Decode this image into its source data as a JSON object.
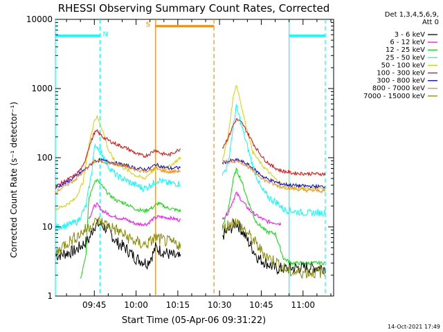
{
  "chart_data": {
    "type": "line",
    "title": "RHESSI Observing Summary Count Rates, Corrected",
    "xlabel": "Start Time (05-Apr-06 09:31:22)",
    "ylabel": "Corrected Count Rate (s⁻¹ detector⁻¹)",
    "footer": "14-Oct-2021 17:49",
    "legend_header": [
      "Det 1,3,4,5,6,9,",
      "Att 0"
    ],
    "xlim": [
      "09:31",
      "11:11"
    ],
    "ylim": [
      1,
      10000
    ],
    "yscale": "log",
    "ytick_labels": [
      "1",
      "10",
      "100",
      "1000",
      "10000"
    ],
    "xtick_labels": [
      "09:45",
      "10:00",
      "10:15",
      "10:30",
      "10:45",
      "11:00"
    ],
    "xtick_values": [
      "09:45",
      "10:00",
      "10:15",
      "10:30",
      "10:45",
      "11:00"
    ],
    "legend": {
      "position": "right"
    },
    "data_gaps": [
      [
        "10:17",
        "10:31"
      ]
    ],
    "series": [
      {
        "name": "3 - 6 keV",
        "color": "#000000",
        "points": [
          [
            "09:31",
            3.8
          ],
          [
            "09:38",
            4.5
          ],
          [
            "09:43",
            6.5
          ],
          [
            "09:45",
            10.5
          ],
          [
            "09:47",
            11
          ],
          [
            "09:50",
            9
          ],
          [
            "09:53",
            6
          ],
          [
            "09:56",
            5
          ],
          [
            "10:00",
            3.5
          ],
          [
            "10:04",
            3
          ],
          [
            "10:06",
            4
          ],
          [
            "10:07",
            5
          ],
          [
            "10:09",
            4.5
          ],
          [
            "10:12",
            4
          ],
          [
            "10:16",
            3.5
          ],
          [
            "10:31",
            7.5
          ],
          [
            "10:34",
            9.5
          ],
          [
            "10:36",
            11.5
          ],
          [
            "10:38",
            9
          ],
          [
            "10:41",
            5.5
          ],
          [
            "10:44",
            3.5
          ],
          [
            "10:47",
            3
          ],
          [
            "10:50",
            2.5
          ],
          [
            "10:53",
            2.5
          ],
          [
            "11:00",
            2.6
          ],
          [
            "11:08",
            2.6
          ]
        ]
      },
      {
        "name": "6 - 12 keV",
        "color": "#ff00ff",
        "points": [
          [
            "09:43",
            13
          ],
          [
            "09:45",
            20
          ],
          [
            "09:46",
            21
          ],
          [
            "09:48",
            17
          ],
          [
            "09:52",
            14
          ],
          [
            "09:56",
            13
          ],
          [
            "10:00",
            11
          ],
          [
            "10:04",
            11
          ],
          [
            "10:06",
            13
          ],
          [
            "10:08",
            14
          ],
          [
            "10:12",
            13.5
          ],
          [
            "10:16",
            12.5
          ],
          [
            "10:31",
            13
          ],
          [
            "10:33",
            16
          ],
          [
            "10:35",
            25
          ],
          [
            "10:36",
            31
          ],
          [
            "10:38",
            24
          ],
          [
            "10:41",
            17
          ],
          [
            "10:44",
            14
          ],
          [
            "10:47",
            12
          ],
          [
            "10:50",
            11.5
          ],
          [
            "10:52",
            11
          ]
        ]
      },
      {
        "name": "12 - 25 keV",
        "color": "#00dd00",
        "points": [
          [
            "09:40",
            1.8
          ],
          [
            "09:42",
            4
          ],
          [
            "09:43",
            25
          ],
          [
            "09:45",
            45
          ],
          [
            "09:46",
            47
          ],
          [
            "09:48",
            38
          ],
          [
            "09:50",
            30
          ],
          [
            "09:53",
            24
          ],
          [
            "09:56",
            22
          ],
          [
            "10:00",
            18
          ],
          [
            "10:03",
            17
          ],
          [
            "10:06",
            19
          ],
          [
            "10:08",
            22
          ],
          [
            "10:11",
            19
          ],
          [
            "10:16",
            17
          ],
          [
            "10:31",
            10
          ],
          [
            "10:33",
            17
          ],
          [
            "10:35",
            50
          ],
          [
            "10:36",
            68
          ],
          [
            "10:38",
            45
          ],
          [
            "10:40",
            25
          ],
          [
            "10:43",
            12
          ],
          [
            "10:47",
            8.5
          ],
          [
            "10:50",
            8
          ],
          [
            "10:53",
            3.5
          ],
          [
            "10:56",
            3
          ],
          [
            "11:00",
            3
          ],
          [
            "11:08",
            3
          ]
        ]
      },
      {
        "name": "25 - 50 keV",
        "color": "#00ffff",
        "points": [
          [
            "09:31",
            10
          ],
          [
            "09:35",
            10.5
          ],
          [
            "09:39",
            12
          ],
          [
            "09:42",
            20
          ],
          [
            "09:44",
            60
          ],
          [
            "09:45",
            140
          ],
          [
            "09:46",
            150
          ],
          [
            "09:48",
            110
          ],
          [
            "09:50",
            75
          ],
          [
            "09:53",
            55
          ],
          [
            "09:56",
            48
          ],
          [
            "10:00",
            40
          ],
          [
            "10:03",
            36
          ],
          [
            "10:06",
            42
          ],
          [
            "10:08",
            48
          ],
          [
            "10:11",
            43
          ],
          [
            "10:16",
            42
          ],
          [
            "10:31",
            55
          ],
          [
            "10:33",
            80
          ],
          [
            "10:35",
            300
          ],
          [
            "10:36",
            550
          ],
          [
            "10:37",
            400
          ],
          [
            "10:39",
            200
          ],
          [
            "10:42",
            75
          ],
          [
            "10:45",
            35
          ],
          [
            "10:48",
            26
          ],
          [
            "10:51",
            22
          ],
          [
            "10:53",
            18
          ],
          [
            "10:56",
            17
          ],
          [
            "11:00",
            16
          ],
          [
            "11:08",
            16
          ]
        ]
      },
      {
        "name": "50 - 100 keV",
        "color": "#ddcc00",
        "points": [
          [
            "09:31",
            18
          ],
          [
            "09:34",
            20
          ],
          [
            "09:38",
            25
          ],
          [
            "09:41",
            45
          ],
          [
            "09:43",
            150
          ],
          [
            "09:45",
            350
          ],
          [
            "09:46",
            390
          ],
          [
            "09:48",
            250
          ],
          [
            "09:50",
            130
          ],
          [
            "09:53",
            80
          ],
          [
            "09:56",
            70
          ],
          [
            "10:00",
            55
          ],
          [
            "10:03",
            50
          ],
          [
            "10:05",
            60
          ],
          [
            "10:08",
            75
          ],
          [
            "10:11",
            70
          ],
          [
            "10:16",
            100
          ],
          [
            "10:31",
            90
          ],
          [
            "10:33",
            200
          ],
          [
            "10:35",
            800
          ],
          [
            "10:36",
            1150
          ],
          [
            "10:37",
            800
          ],
          [
            "10:39",
            350
          ],
          [
            "10:42",
            120
          ],
          [
            "10:45",
            80
          ],
          [
            "10:48",
            60
          ],
          [
            "10:51",
            45
          ],
          [
            "10:54",
            38
          ],
          [
            "11:00",
            37
          ],
          [
            "11:08",
            36
          ]
        ]
      },
      {
        "name": "100 - 300 keV",
        "color": "#ee0000",
        "points": [
          [
            "09:31",
            38
          ],
          [
            "09:34",
            45
          ],
          [
            "09:38",
            55
          ],
          [
            "09:41",
            75
          ],
          [
            "09:43",
            140
          ],
          [
            "09:45",
            230
          ],
          [
            "09:46",
            240
          ],
          [
            "09:48",
            200
          ],
          [
            "09:51",
            170
          ],
          [
            "09:54",
            150
          ],
          [
            "09:57",
            135
          ],
          [
            "10:00",
            115
          ],
          [
            "10:03",
            105
          ],
          [
            "10:05",
            115
          ],
          [
            "10:07",
            130
          ],
          [
            "10:09",
            115
          ],
          [
            "10:12",
            110
          ],
          [
            "10:16",
            135
          ],
          [
            "10:31",
            140
          ],
          [
            "10:33",
            190
          ],
          [
            "10:35",
            300
          ],
          [
            "10:36",
            360
          ],
          [
            "10:38",
            320
          ],
          [
            "10:40",
            230
          ],
          [
            "10:43",
            140
          ],
          [
            "10:46",
            95
          ],
          [
            "10:49",
            75
          ],
          [
            "10:52",
            65
          ],
          [
            "10:56",
            60
          ],
          [
            "11:00",
            59
          ],
          [
            "11:08",
            58
          ]
        ]
      },
      {
        "name": "300 - 800 keV",
        "color": "#0000ee",
        "points": [
          [
            "09:31",
            36
          ],
          [
            "09:34",
            42
          ],
          [
            "09:38",
            52
          ],
          [
            "09:41",
            65
          ],
          [
            "09:43",
            75
          ],
          [
            "09:45",
            90
          ],
          [
            "09:47",
            92
          ],
          [
            "09:50",
            88
          ],
          [
            "09:53",
            83
          ],
          [
            "09:56",
            78
          ],
          [
            "10:00",
            70
          ],
          [
            "10:03",
            68
          ],
          [
            "10:05",
            70
          ],
          [
            "10:07",
            80
          ],
          [
            "10:09",
            75
          ],
          [
            "10:12",
            70
          ],
          [
            "10:16",
            72
          ],
          [
            "10:31",
            85
          ],
          [
            "10:34",
            90
          ],
          [
            "10:37",
            92
          ],
          [
            "10:40",
            80
          ],
          [
            "10:43",
            65
          ],
          [
            "10:46",
            52
          ],
          [
            "10:49",
            46
          ],
          [
            "10:52",
            42
          ],
          [
            "10:56",
            40
          ],
          [
            "11:00",
            39
          ],
          [
            "11:08",
            38
          ]
        ]
      },
      {
        "name": "800 - 7000 keV",
        "color": "#ff8800",
        "points": [
          [
            "09:31",
            32
          ],
          [
            "09:34",
            38
          ],
          [
            "09:38",
            48
          ],
          [
            "09:41",
            62
          ],
          [
            "09:43",
            75
          ],
          [
            "09:45",
            88
          ],
          [
            "09:47",
            90
          ],
          [
            "09:50",
            85
          ],
          [
            "09:53",
            80
          ],
          [
            "09:56",
            75
          ],
          [
            "10:00",
            67
          ],
          [
            "10:03",
            64
          ],
          [
            "10:05",
            65
          ],
          [
            "10:07",
            70
          ],
          [
            "10:09",
            66
          ],
          [
            "10:12",
            62
          ],
          [
            "10:16",
            65
          ],
          [
            "10:31",
            85
          ],
          [
            "10:34",
            88
          ],
          [
            "10:37",
            90
          ],
          [
            "10:40",
            75
          ],
          [
            "10:43",
            60
          ],
          [
            "10:46",
            48
          ],
          [
            "10:49",
            42
          ],
          [
            "10:52",
            38
          ],
          [
            "10:56",
            36
          ],
          [
            "11:00",
            34
          ],
          [
            "11:08",
            33
          ]
        ]
      },
      {
        "name": "7000 - 15000 keV",
        "color": "#888800",
        "points": [
          [
            "09:31",
            4
          ],
          [
            "09:34",
            5.5
          ],
          [
            "09:38",
            7
          ],
          [
            "09:41",
            8.5
          ],
          [
            "09:43",
            10
          ],
          [
            "09:45",
            11.5
          ],
          [
            "09:47",
            12
          ],
          [
            "09:50",
            10.5
          ],
          [
            "09:53",
            9
          ],
          [
            "09:56",
            7.5
          ],
          [
            "10:00",
            6
          ],
          [
            "10:03",
            5.5
          ],
          [
            "10:05",
            6
          ],
          [
            "10:07",
            7
          ],
          [
            "10:09",
            6.5
          ],
          [
            "10:12",
            6
          ],
          [
            "10:16",
            5.5
          ],
          [
            "10:31",
            9
          ],
          [
            "10:34",
            11.5
          ],
          [
            "10:36",
            12
          ],
          [
            "10:39",
            9
          ],
          [
            "10:42",
            6.5
          ],
          [
            "10:45",
            4.5
          ],
          [
            "10:48",
            3.5
          ],
          [
            "10:51",
            3
          ],
          [
            "10:53",
            2.5
          ],
          [
            "10:56",
            2.2
          ],
          [
            "11:00",
            2.2
          ],
          [
            "11:08",
            2.2
          ]
        ]
      }
    ],
    "annotations": {
      "flags": [
        {
          "label": "N",
          "color": "#00ffff",
          "segments": [
            [
              "09:31",
              "09:47"
            ],
            [
              "10:55",
              "11:08"
            ]
          ],
          "level": 5800
        },
        {
          "label": "S",
          "color": "#ff8800",
          "segments": [
            [
              "10:07",
              "10:28"
            ]
          ],
          "level": 8000
        }
      ],
      "vlines": [
        {
          "time": "09:31",
          "color": "#00ffff",
          "style": "solid"
        },
        {
          "time": "09:47",
          "color": "#00ffff",
          "style": "dashed"
        },
        {
          "time": "10:07",
          "color": "#ff8800",
          "style": "solid"
        },
        {
          "time": "10:28",
          "color": "#ff8800",
          "style": "dashed"
        },
        {
          "time": "10:55",
          "color": "#00ffff",
          "style": "solid"
        },
        {
          "time": "11:08",
          "color": "#00ffff",
          "style": "dashed"
        }
      ]
    }
  }
}
